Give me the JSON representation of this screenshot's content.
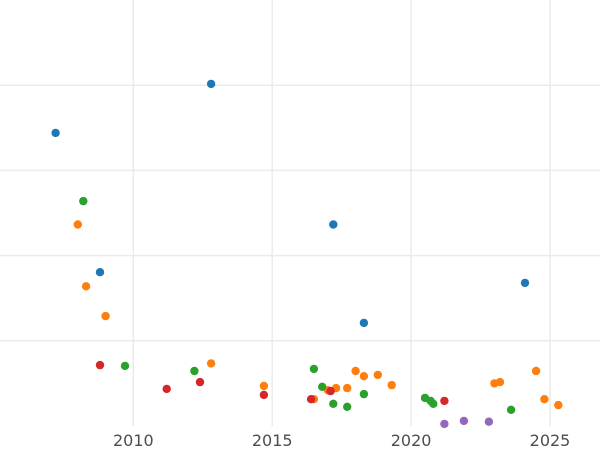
{
  "chart_data": {
    "type": "scatter",
    "title": "",
    "xlabel": "",
    "ylabel": "",
    "xlim": [
      2005.2,
      2026.8
    ],
    "ylim": [
      0,
      1
    ],
    "x_ticks": [
      2010,
      2015,
      2020,
      2025
    ],
    "x_tick_labels": [
      "2010",
      "2015",
      "2020",
      "2025"
    ],
    "y_gridlines": [
      0.2,
      0.4,
      0.6,
      0.8
    ],
    "grid": true,
    "legend": "none",
    "series": [
      {
        "color": "#1f77b4",
        "points": [
          [
            2007.2,
            0.688
          ],
          [
            2008.8,
            0.361
          ],
          [
            2012.8,
            0.803
          ],
          [
            2017.2,
            0.473
          ],
          [
            2018.3,
            0.242
          ],
          [
            2024.1,
            0.336
          ]
        ]
      },
      {
        "color": "#ff7f0e",
        "points": [
          [
            2008.0,
            0.473
          ],
          [
            2008.3,
            0.328
          ],
          [
            2009.0,
            0.258
          ],
          [
            2012.8,
            0.147
          ],
          [
            2014.7,
            0.094
          ],
          [
            2016.5,
            0.063
          ],
          [
            2017.0,
            0.084
          ],
          [
            2017.3,
            0.089
          ],
          [
            2017.7,
            0.089
          ],
          [
            2018.0,
            0.129
          ],
          [
            2018.3,
            0.117
          ],
          [
            2018.8,
            0.12
          ],
          [
            2019.3,
            0.096
          ],
          [
            2023.0,
            0.1
          ],
          [
            2023.2,
            0.103
          ],
          [
            2024.5,
            0.129
          ],
          [
            2024.8,
            0.063
          ],
          [
            2025.3,
            0.049
          ]
        ]
      },
      {
        "color": "#2ca02c",
        "points": [
          [
            2008.2,
            0.528
          ],
          [
            2009.7,
            0.141
          ],
          [
            2012.2,
            0.129
          ],
          [
            2016.5,
            0.134
          ],
          [
            2016.8,
            0.092
          ],
          [
            2017.2,
            0.052
          ],
          [
            2017.7,
            0.045
          ],
          [
            2018.3,
            0.075
          ],
          [
            2020.5,
            0.066
          ],
          [
            2020.7,
            0.059
          ],
          [
            2020.8,
            0.052
          ],
          [
            2023.6,
            0.038
          ]
        ]
      },
      {
        "color": "#d62728",
        "points": [
          [
            2008.8,
            0.143
          ],
          [
            2011.2,
            0.087
          ],
          [
            2012.4,
            0.103
          ],
          [
            2014.7,
            0.073
          ],
          [
            2016.4,
            0.063
          ],
          [
            2017.1,
            0.082
          ],
          [
            2021.2,
            0.059
          ]
        ]
      },
      {
        "color": "#9467bd",
        "points": [
          [
            2021.2,
            0.005
          ],
          [
            2021.9,
            0.012
          ],
          [
            2022.8,
            0.01
          ]
        ]
      }
    ]
  }
}
